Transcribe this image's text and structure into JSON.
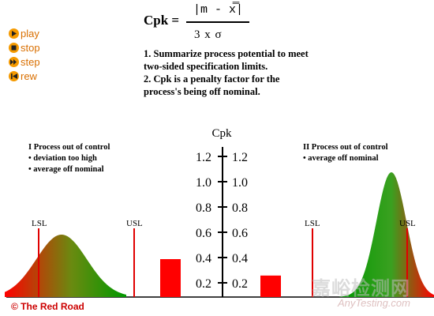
{
  "controls": [
    {
      "label": "play",
      "icon": "play-icon"
    },
    {
      "label": "stop",
      "icon": "stop-icon"
    },
    {
      "label": "step",
      "icon": "step-icon"
    },
    {
      "label": "rew",
      "icon": "rewind-icon"
    }
  ],
  "formula": {
    "lhs": "Cpk =",
    "numerator": "|m - x̿|",
    "denominator": "3 x σ"
  },
  "notes": [
    "1. Summarize process potential to meet two-sided specification limits.",
    "2. Cpk is a penalty factor for the process's being off nominal."
  ],
  "axis": {
    "title": "Cpk",
    "ticks": [
      "1.2",
      "1.0",
      "0.8",
      "0.6",
      "0.4",
      "0.2"
    ]
  },
  "case_one": {
    "title": "I  Process out of control",
    "items": [
      "• deviation too high",
      "• average off nominal"
    ],
    "lsl": "LSL",
    "usl": "USL"
  },
  "case_two": {
    "title": "II  Process out of control",
    "items": [
      "• average off nominal"
    ],
    "lsl": "LSL",
    "usl": "USL"
  },
  "bars": {
    "left_value": 0.3,
    "right_value": 0.17
  },
  "colors": {
    "accent": "#f59a00",
    "spec": "#e00000",
    "curve_start": "#ff0000",
    "curve_end": "#008800"
  },
  "copyright": "© The Red Road",
  "watermark": {
    "main": "嘉峪检测网",
    "sub": "AnyTesting.com"
  }
}
